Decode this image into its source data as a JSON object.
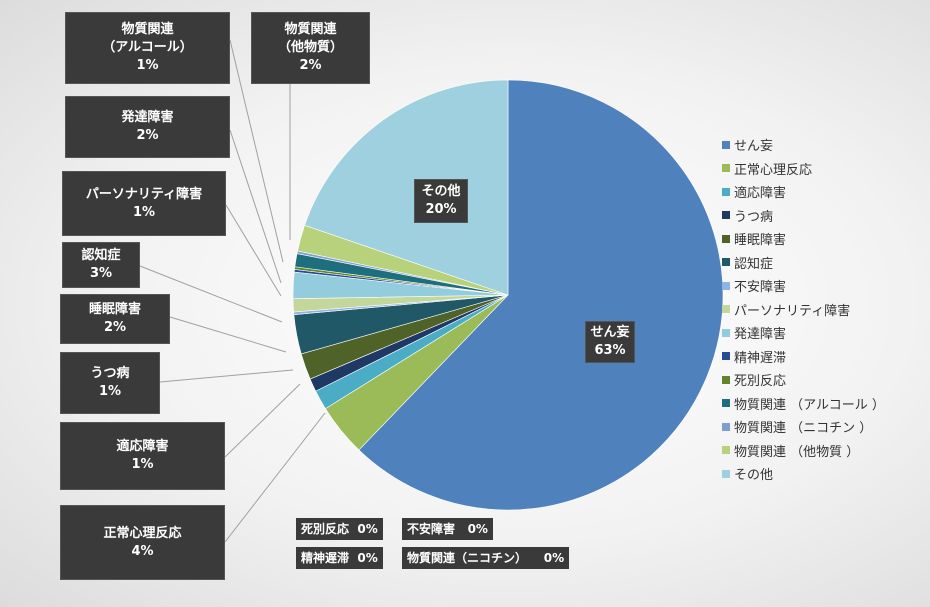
{
  "chart_data": {
    "type": "pie",
    "categories": [
      "せん妄",
      "正常心理反応",
      "適応障害",
      "うつ病",
      "睡眠障害",
      "認知症",
      "不安障害",
      "パーソナリティ障害",
      "発達障害",
      "精神遅滞",
      "死別反応",
      "物質関連 （アルコール ）",
      "物質関連 （ニコチン ）",
      "物質関連 （他物質 ）",
      "その他"
    ],
    "values": [
      63,
      4,
      1.5,
      1,
      2,
      3,
      0.2,
      1,
      2,
      0.2,
      0.2,
      1,
      0.2,
      2,
      20
    ],
    "colors": [
      "#4f81bd",
      "#9bbb59",
      "#4bacc6",
      "#1f3864",
      "#4f6228",
      "#215868",
      "#8eb4e3",
      "#c3d69b",
      "#93cddd",
      "#254d93",
      "#60832c",
      "#1e6f7e",
      "#7f9fd0",
      "#b8d27c",
      "#9fd0e0"
    ],
    "legend_position": "right"
  },
  "labels": {
    "sendo": {
      "name": "せん妄",
      "pct": "63%"
    },
    "other": {
      "name": "その他",
      "pct": "20%"
    },
    "alcohol": {
      "line1": "物質関連",
      "line2": "（アルコール）",
      "pct": "1%"
    },
    "other_sub": {
      "line1": "物質関連",
      "line2": "（他物質）",
      "pct": "2%"
    },
    "dev": {
      "name": "発達障害",
      "pct": "2%"
    },
    "person": {
      "name": "パーソナリティ障害",
      "pct": "1%"
    },
    "dementia": {
      "name": "認知症",
      "pct": "3%"
    },
    "sleep": {
      "name": "睡眠障害",
      "pct": "2%"
    },
    "depress": {
      "name": "うつ病",
      "pct": "1%"
    },
    "adjust": {
      "name": "適応障害",
      "pct": "1%"
    },
    "normal": {
      "name": "正常心理反応",
      "pct": "4%"
    },
    "bereave": {
      "name": "死別反応",
      "pct": "0%"
    },
    "anxiety": {
      "name": "不安障害",
      "pct": "0%"
    },
    "retard": {
      "name": "精神遅滞",
      "pct": "0%"
    },
    "nicotine": {
      "name": "物質関連（ニコチン）",
      "pct": "0%"
    }
  }
}
